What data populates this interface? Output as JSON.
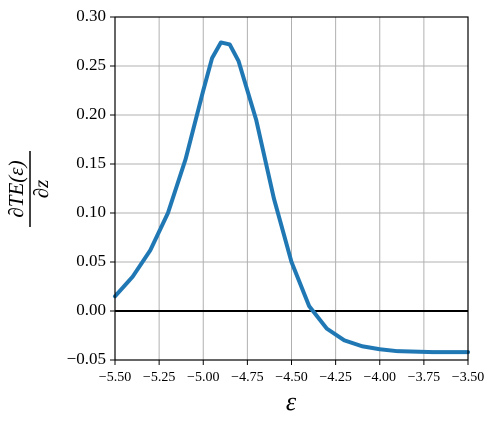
{
  "chart_data": {
    "type": "line",
    "xlabel": "ε",
    "ylabel": {
      "numerator": "∂TE(ε)",
      "denominator": "∂z"
    },
    "x": [
      -5.5,
      -5.4,
      -5.3,
      -5.2,
      -5.1,
      -5.0,
      -4.95,
      -4.9,
      -4.85,
      -4.8,
      -4.7,
      -4.6,
      -4.5,
      -4.4,
      -4.3,
      -4.2,
      -4.1,
      -4.0,
      -3.9,
      -3.8,
      -3.7,
      -3.6,
      -3.5
    ],
    "series": [
      {
        "color": "#1f77b4",
        "values": [
          0.015,
          0.035,
          0.062,
          0.1,
          0.155,
          0.225,
          0.258,
          0.274,
          0.272,
          0.255,
          0.195,
          0.115,
          0.05,
          0.005,
          -0.018,
          -0.03,
          -0.036,
          -0.039,
          -0.041,
          -0.0415,
          -0.042,
          -0.042,
          -0.042
        ]
      }
    ],
    "xlim": [
      -5.5,
      -3.5
    ],
    "xticks": [
      {
        "value": -5.5,
        "label": "−5.50"
      },
      {
        "value": -5.25,
        "label": "−5.25"
      },
      {
        "value": -5.0,
        "label": "−5.00"
      },
      {
        "value": -4.75,
        "label": "−4.75"
      },
      {
        "value": -4.5,
        "label": "−4.50"
      },
      {
        "value": -4.25,
        "label": "−4.25"
      },
      {
        "value": -4.0,
        "label": "−4.00"
      },
      {
        "value": -3.75,
        "label": "−3.75"
      },
      {
        "value": -3.5,
        "label": "−3.50"
      }
    ],
    "ylim": [
      -0.05,
      0.3
    ],
    "yticks": [
      {
        "value": -0.05,
        "label": "−0.05"
      },
      {
        "value": 0,
        "label": "0.00"
      },
      {
        "value": 0.05,
        "label": "0.05"
      },
      {
        "value": 0.1,
        "label": "0.10"
      },
      {
        "value": 0.15,
        "label": "0.15"
      },
      {
        "value": 0.2,
        "label": "0.20"
      },
      {
        "value": 0.25,
        "label": "0.25"
      },
      {
        "value": 0.3,
        "label": "0.30"
      }
    ],
    "grid": true,
    "hline": 0
  }
}
